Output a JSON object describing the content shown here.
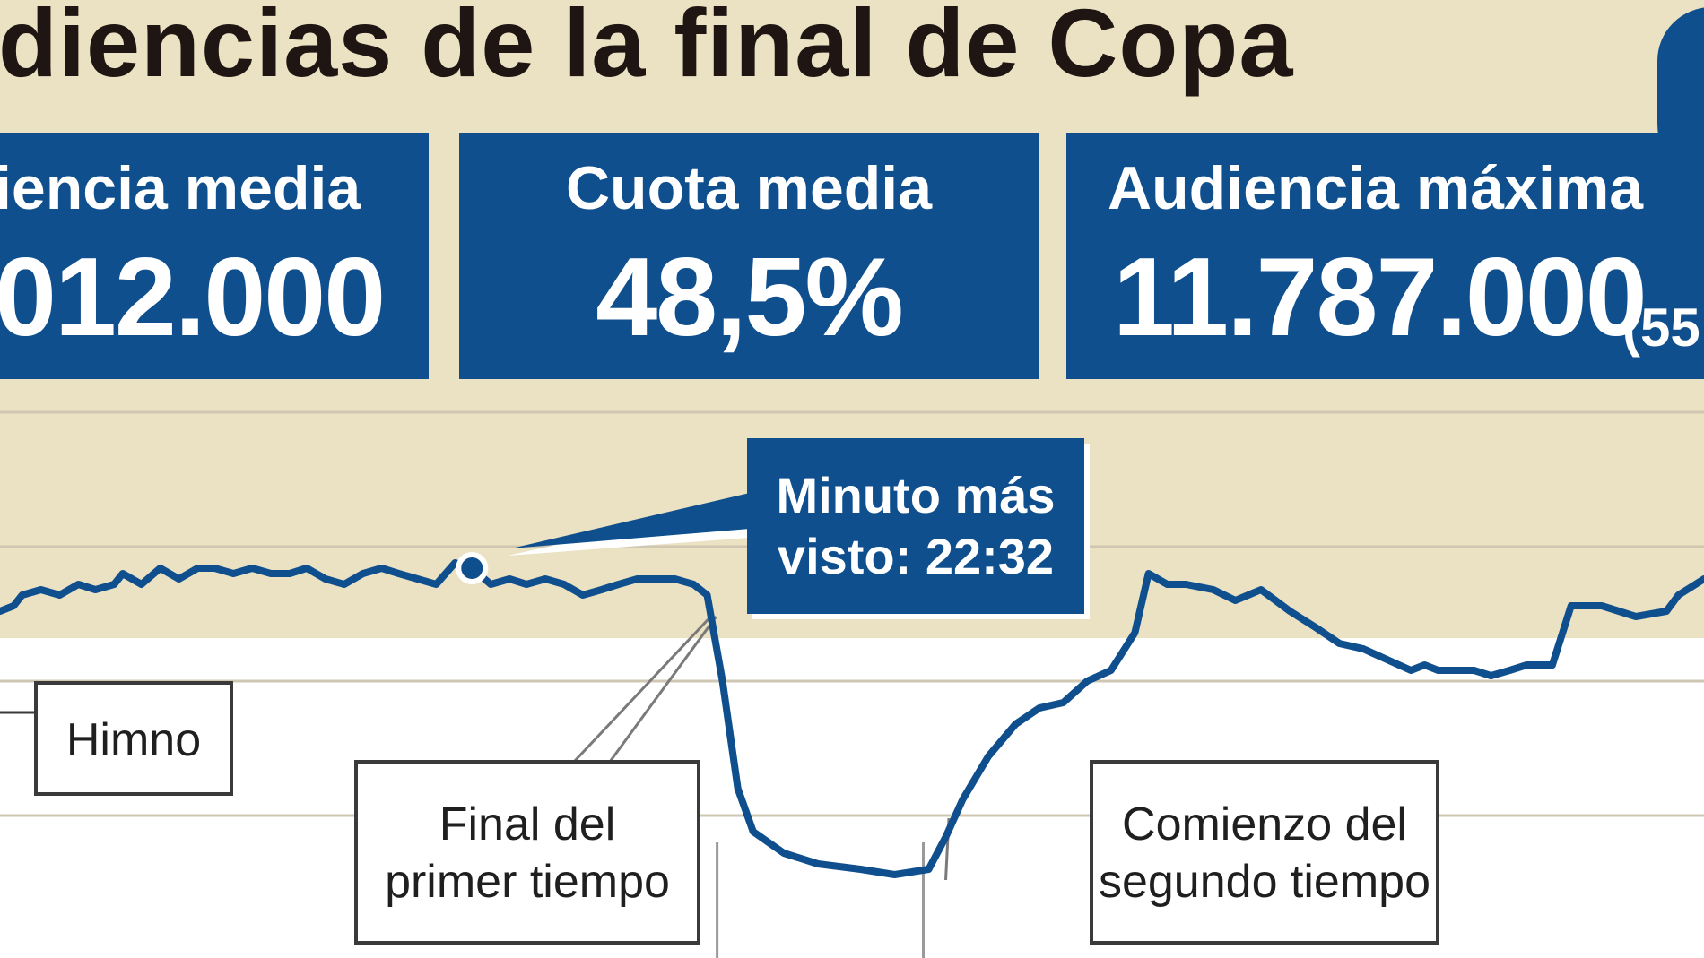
{
  "title": "diencias de la final de Copa",
  "stats": [
    {
      "label": "iencia  media",
      "value": "012.000"
    },
    {
      "label": "Cuota media",
      "value": "48,5%"
    },
    {
      "label": "Audiencia máxima",
      "value": "11.787.000",
      "extra": "(55"
    }
  ],
  "colors": {
    "background": "#ebe1c3",
    "box": "#0f4f8e",
    "line": "#0f4f8e",
    "band": "#ffffff",
    "grid": "#cfc7b2"
  },
  "annotations": {
    "peak": {
      "line1": "Minuto más",
      "line2": "visto: 22:32"
    },
    "himno": "Himno",
    "final_primer_tiempo": {
      "line1": "Final del",
      "line2": "primer tiempo"
    },
    "comienzo_segundo_tiempo": {
      "line1": "Comienzo del",
      "line2": "segundo tiempo"
    }
  },
  "chart_data": {
    "type": "line",
    "title": "diencias de la final de Copa",
    "xlabel": "",
    "ylabel": "",
    "grid": true,
    "xlim": [
      0,
      100
    ],
    "ylim": [
      0,
      100
    ],
    "series": [
      {
        "values": [
          [
            0,
            63
          ],
          [
            0.8,
            64
          ],
          [
            1.3,
            66
          ],
          [
            2.4,
            67
          ],
          [
            3.5,
            66
          ],
          [
            4.6,
            68
          ],
          [
            5.6,
            67
          ],
          [
            6.7,
            68
          ],
          [
            7.2,
            70
          ],
          [
            8.3,
            68
          ],
          [
            9.4,
            71
          ],
          [
            10.5,
            69
          ],
          [
            11.6,
            71
          ],
          [
            12.6,
            71
          ],
          [
            13.7,
            70
          ],
          [
            14.8,
            71
          ],
          [
            15.9,
            70
          ],
          [
            17,
            70
          ],
          [
            18,
            71
          ],
          [
            19.1,
            69
          ],
          [
            20.2,
            68
          ],
          [
            21.3,
            70
          ],
          [
            22.4,
            71
          ],
          [
            23.4,
            70
          ],
          [
            24.5,
            69
          ],
          [
            25.6,
            68
          ],
          [
            26.7,
            72
          ],
          [
            27.7,
            71
          ],
          [
            28.8,
            68
          ],
          [
            29.9,
            69
          ],
          [
            30.9,
            68
          ],
          [
            32,
            69
          ],
          [
            33.1,
            68
          ],
          [
            34.2,
            66
          ],
          [
            35.3,
            67
          ],
          [
            36.3,
            68
          ],
          [
            37.4,
            69
          ],
          [
            38.5,
            69
          ],
          [
            39.6,
            69
          ],
          [
            40.7,
            68
          ],
          [
            41.5,
            66
          ],
          [
            42.4,
            50
          ],
          [
            43.3,
            30
          ],
          [
            44.2,
            22
          ],
          [
            46,
            18
          ],
          [
            48,
            16
          ],
          [
            50.5,
            15
          ],
          [
            52.5,
            14
          ],
          [
            54.5,
            15
          ],
          [
            55.5,
            21
          ],
          [
            56.5,
            28
          ],
          [
            58,
            36
          ],
          [
            59.6,
            42
          ],
          [
            61,
            45
          ],
          [
            62.4,
            46
          ],
          [
            63.8,
            50
          ],
          [
            65.2,
            52
          ],
          [
            66.6,
            59
          ],
          [
            67.4,
            70
          ],
          [
            68.5,
            68
          ],
          [
            69.6,
            68
          ],
          [
            71.2,
            67
          ],
          [
            72.5,
            65
          ],
          [
            74,
            67
          ],
          [
            75.7,
            63
          ],
          [
            77.2,
            60
          ],
          [
            78.6,
            57
          ],
          [
            80,
            56
          ],
          [
            81.4,
            54
          ],
          [
            82.8,
            52
          ],
          [
            83.6,
            53
          ],
          [
            84.4,
            52
          ],
          [
            85.5,
            52
          ],
          [
            86.5,
            52
          ],
          [
            87.5,
            51
          ],
          [
            88.6,
            52
          ],
          [
            89.6,
            53
          ],
          [
            91.1,
            53
          ],
          [
            92.2,
            64
          ],
          [
            94,
            64
          ],
          [
            96,
            62
          ],
          [
            97.8,
            63
          ],
          [
            98.5,
            66
          ],
          [
            100,
            69
          ]
        ]
      }
    ],
    "highlight_point": [
      27.7,
      71
    ],
    "markers_x": [
      42.4,
      54.5
    ]
  }
}
